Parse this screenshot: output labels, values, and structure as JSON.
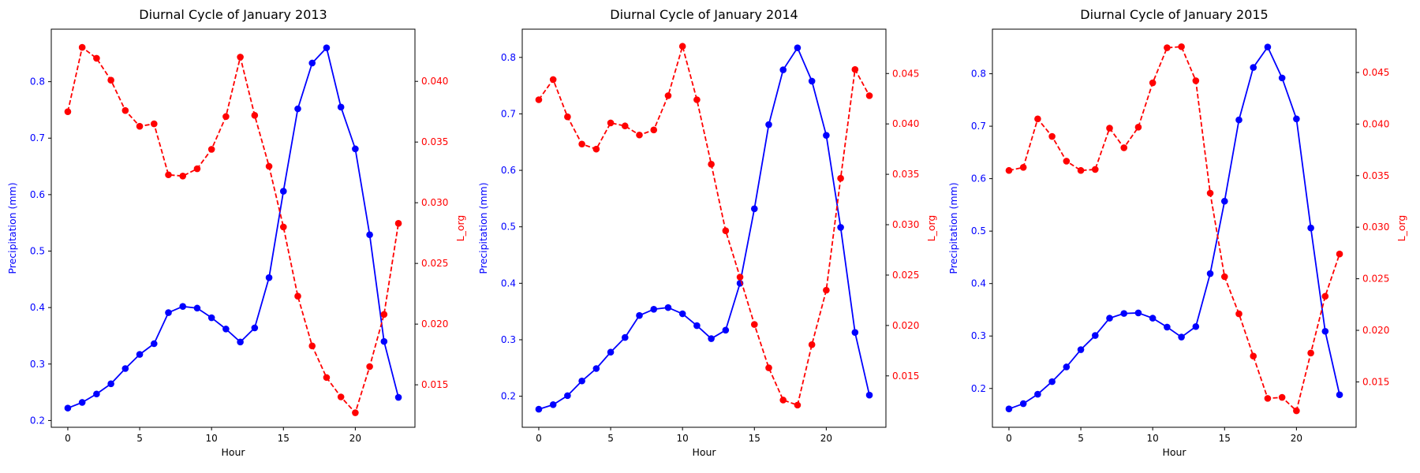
{
  "figure": {
    "colors": {
      "precip": "#0000ff",
      "lorg": "#ff0000",
      "axis": "#000000"
    }
  },
  "chart_data": [
    {
      "type": "line",
      "title": "Diurnal Cycle of January 2013",
      "xlabel": "Hour",
      "ylabel_left": "Precipitation (mm)",
      "ylabel_right": "L_org",
      "x": [
        0,
        1,
        2,
        3,
        4,
        5,
        6,
        7,
        8,
        9,
        10,
        11,
        12,
        13,
        14,
        15,
        16,
        17,
        18,
        19,
        20,
        21,
        22,
        23
      ],
      "xlim": [
        -1.15,
        24.15
      ],
      "xticks": [
        0,
        5,
        10,
        15,
        20
      ],
      "left_axis": {
        "ylim": [
          0.188,
          0.893
        ],
        "ticks": [
          0.2,
          0.3,
          0.4,
          0.5,
          0.6,
          0.7,
          0.8
        ],
        "tick_labels": [
          "0.2",
          "0.3",
          "0.4",
          "0.5",
          "0.6",
          "0.7",
          "0.8"
        ]
      },
      "right_axis": {
        "ylim": [
          0.0115,
          0.0443
        ],
        "ticks": [
          0.015,
          0.02,
          0.025,
          0.03,
          0.035,
          0.04
        ],
        "tick_labels": [
          "0.015",
          "0.020",
          "0.025",
          "0.030",
          "0.035",
          "0.040"
        ]
      },
      "series": [
        {
          "name": "Precipitation (mm)",
          "axis": "left",
          "color": "#0000ff",
          "linestyle": "solid",
          "marker": "o",
          "values": [
            0.222,
            0.232,
            0.247,
            0.265,
            0.292,
            0.317,
            0.336,
            0.391,
            0.402,
            0.399,
            0.382,
            0.362,
            0.339,
            0.364,
            0.453,
            0.606,
            0.752,
            0.833,
            0.86,
            0.755,
            0.681,
            0.529,
            0.34,
            0.241
          ]
        },
        {
          "name": "L_org",
          "axis": "right",
          "color": "#ff0000",
          "linestyle": "dashed",
          "marker": "o",
          "values": [
            0.0375,
            0.0428,
            0.0419,
            0.0401,
            0.0376,
            0.0363,
            0.0365,
            0.0323,
            0.0322,
            0.0328,
            0.0344,
            0.0371,
            0.042,
            0.0372,
            0.033,
            0.028,
            0.0223,
            0.0182,
            0.0156,
            0.014,
            0.0127,
            0.0165,
            0.0208,
            0.0283
          ]
        }
      ]
    },
    {
      "type": "line",
      "title": "Diurnal Cycle of January 2014",
      "xlabel": "Hour",
      "ylabel_left": "Precipitation (mm)",
      "ylabel_right": "L_org",
      "x": [
        0,
        1,
        2,
        3,
        4,
        5,
        6,
        7,
        8,
        9,
        10,
        11,
        12,
        13,
        14,
        15,
        16,
        17,
        18,
        19,
        20,
        21,
        22,
        23
      ],
      "xlim": [
        -1.15,
        24.15
      ],
      "xticks": [
        0,
        5,
        10,
        15,
        20
      ],
      "left_axis": {
        "ylim": [
          0.145,
          0.85
        ],
        "ticks": [
          0.2,
          0.3,
          0.4,
          0.5,
          0.6,
          0.7,
          0.8
        ],
        "tick_labels": [
          "0.2",
          "0.3",
          "0.4",
          "0.5",
          "0.6",
          "0.7",
          "0.8"
        ]
      },
      "right_axis": {
        "ylim": [
          0.0099,
          0.0494
        ],
        "ticks": [
          0.015,
          0.02,
          0.025,
          0.03,
          0.035,
          0.04,
          0.045
        ],
        "tick_labels": [
          "0.015",
          "0.020",
          "0.025",
          "0.030",
          "0.035",
          "0.040",
          "0.045"
        ]
      },
      "series": [
        {
          "name": "Precipitation (mm)",
          "axis": "left",
          "color": "#0000ff",
          "linestyle": "solid",
          "marker": "o",
          "values": [
            0.177,
            0.185,
            0.201,
            0.227,
            0.249,
            0.278,
            0.304,
            0.343,
            0.354,
            0.357,
            0.346,
            0.325,
            0.302,
            0.317,
            0.4,
            0.532,
            0.681,
            0.778,
            0.817,
            0.758,
            0.662,
            0.499,
            0.313,
            0.202
          ]
        },
        {
          "name": "L_org",
          "axis": "right",
          "color": "#ff0000",
          "linestyle": "dashed",
          "marker": "o",
          "values": [
            0.0424,
            0.0444,
            0.0407,
            0.038,
            0.0375,
            0.0401,
            0.0398,
            0.0389,
            0.0394,
            0.0428,
            0.0477,
            0.0424,
            0.036,
            0.0294,
            0.0248,
            0.0201,
            0.0158,
            0.0126,
            0.0121,
            0.0181,
            0.0235,
            0.0346,
            0.0454,
            0.0428
          ]
        }
      ]
    },
    {
      "type": "line",
      "title": "Diurnal Cycle of January 2015",
      "xlabel": "Hour",
      "ylabel_left": "Precipitation (mm)",
      "ylabel_right": "L_org",
      "x": [
        0,
        1,
        2,
        3,
        4,
        5,
        6,
        7,
        8,
        9,
        10,
        11,
        12,
        13,
        14,
        15,
        16,
        17,
        18,
        19,
        20,
        21,
        22,
        23
      ],
      "xlim": [
        -1.15,
        24.15
      ],
      "xticks": [
        0,
        5,
        10,
        15,
        20
      ],
      "left_axis": {
        "ylim": [
          0.126,
          0.885
        ],
        "ticks": [
          0.2,
          0.3,
          0.4,
          0.5,
          0.6,
          0.7,
          0.8
        ],
        "tick_labels": [
          "0.2",
          "0.3",
          "0.4",
          "0.5",
          "0.6",
          "0.7",
          "0.8"
        ]
      },
      "right_axis": {
        "ylim": [
          0.0106,
          0.0492
        ],
        "ticks": [
          0.015,
          0.02,
          0.025,
          0.03,
          0.035,
          0.04,
          0.045
        ],
        "tick_labels": [
          "0.015",
          "0.020",
          "0.025",
          "0.030",
          "0.035",
          "0.040",
          "0.045"
        ]
      },
      "series": [
        {
          "name": "Precipitation (mm)",
          "axis": "left",
          "color": "#0000ff",
          "linestyle": "solid",
          "marker": "o",
          "values": [
            0.161,
            0.171,
            0.189,
            0.213,
            0.241,
            0.274,
            0.301,
            0.334,
            0.343,
            0.344,
            0.334,
            0.317,
            0.298,
            0.318,
            0.419,
            0.557,
            0.712,
            0.812,
            0.851,
            0.792,
            0.714,
            0.506,
            0.309,
            0.188
          ]
        },
        {
          "name": "L_org",
          "axis": "right",
          "color": "#ff0000",
          "linestyle": "dashed",
          "marker": "o",
          "values": [
            0.0355,
            0.0358,
            0.0405,
            0.0388,
            0.0364,
            0.0355,
            0.0356,
            0.0396,
            0.0377,
            0.0397,
            0.044,
            0.0474,
            0.0475,
            0.0442,
            0.0333,
            0.0252,
            0.0216,
            0.0175,
            0.0134,
            0.0135,
            0.0122,
            0.0178,
            0.0233,
            0.0274
          ]
        }
      ]
    }
  ]
}
